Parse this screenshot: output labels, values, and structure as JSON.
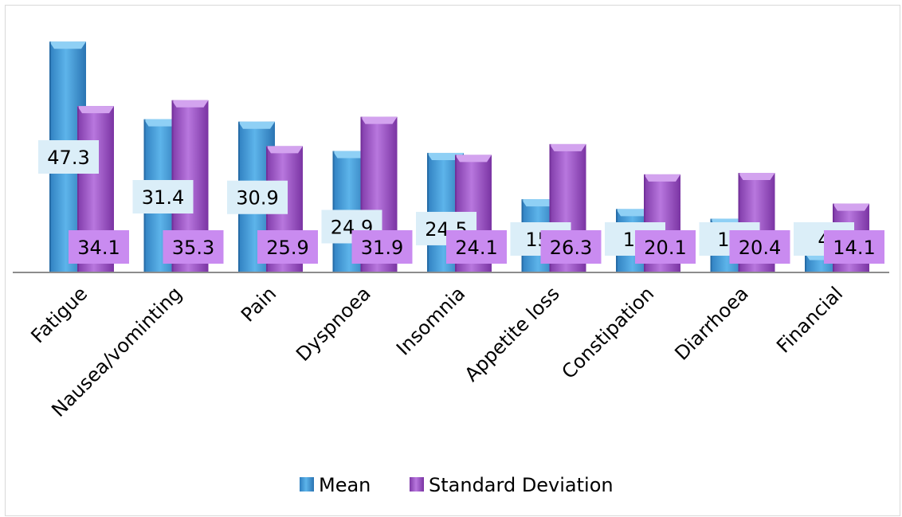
{
  "chart_data": {
    "type": "bar",
    "categories": [
      "Fatigue",
      "Nausea/vominting",
      "Pain",
      "Dyspnoea",
      "Insomnia",
      "Appetite loss",
      "Constipation",
      "Diarrhoea",
      "Financial"
    ],
    "series": [
      {
        "name": "Mean",
        "values": [
          47.3,
          31.4,
          30.9,
          24.9,
          24.5,
          15.0,
          13.0,
          11.0,
          4.0
        ],
        "labels": [
          "47.3",
          "31.4",
          "30.9",
          "24.9",
          "24.5",
          "15.",
          "13",
          "11",
          "4"
        ],
        "color": "#4aa3df"
      },
      {
        "name": "Standard Deviation",
        "values": [
          34.1,
          35.3,
          25.9,
          31.9,
          24.1,
          26.3,
          20.1,
          20.4,
          14.1
        ],
        "labels": [
          "34.1",
          "35.3",
          "25.9",
          "31.9",
          "24.1",
          "26.3",
          "20.1",
          "20.4",
          "14.1"
        ],
        "color": "#a55fd1"
      }
    ],
    "ylim": [
      0,
      48
    ],
    "legend": "bottom",
    "grid": false
  }
}
